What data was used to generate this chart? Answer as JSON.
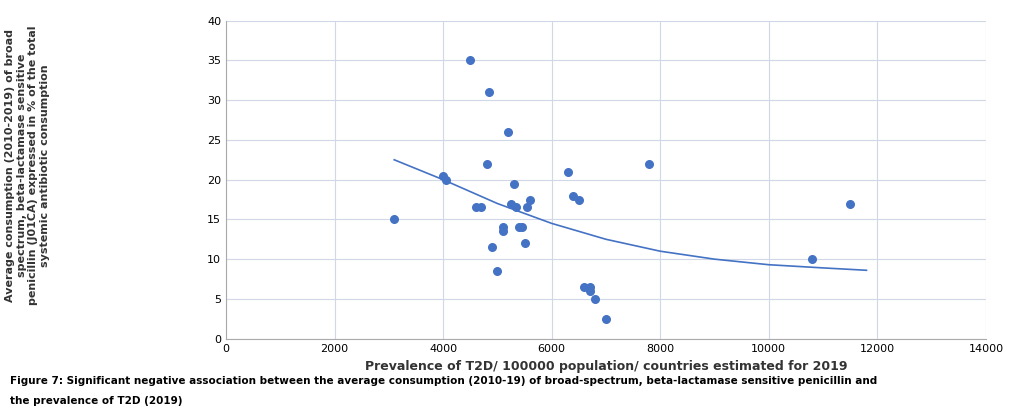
{
  "scatter_x": [
    3100,
    4000,
    4050,
    4500,
    4600,
    4700,
    4800,
    4850,
    4900,
    5000,
    5100,
    5100,
    5200,
    5250,
    5300,
    5350,
    5400,
    5450,
    5500,
    5550,
    5600,
    6300,
    6400,
    6500,
    6600,
    6700,
    6700,
    6800,
    7000,
    7800,
    10800,
    11500
  ],
  "scatter_y": [
    15,
    20.5,
    20,
    35,
    16.5,
    16.5,
    22,
    31,
    11.5,
    8.5,
    14,
    13.5,
    26,
    17,
    19.5,
    16.5,
    14,
    14,
    12,
    16.5,
    17.5,
    21,
    18,
    17.5,
    6.5,
    6.5,
    6,
    5,
    2.5,
    22,
    10,
    17
  ],
  "fit_x": [
    3100,
    4000,
    5000,
    6000,
    7000,
    8000,
    9000,
    10000,
    11000,
    11800
  ],
  "fit_y": [
    22.5,
    20.0,
    17.0,
    14.5,
    12.5,
    11.0,
    10.0,
    9.3,
    8.9,
    8.6
  ],
  "scatter_color": "#4472C4",
  "line_color": "#4472C4",
  "xlabel": "Prevalence of T2D/ 100000 population/ countries estimated for 2019",
  "ylabel_lines": [
    "Average consumption (2010-2019) of broad",
    "spectrum, beta-lactamase sensitive",
    "penicillin (J01CA) expressed in % of the total",
    "systemic antibiotic consumption"
  ],
  "xlim": [
    0,
    14000
  ],
  "ylim": [
    0,
    40
  ],
  "xticks": [
    0,
    2000,
    4000,
    6000,
    8000,
    10000,
    12000,
    14000
  ],
  "yticks": [
    0,
    5,
    10,
    15,
    20,
    25,
    30,
    35,
    40
  ],
  "caption_line1": "Figure 7: Significant negative association between the average consumption (2010-19) of broad-spectrum, beta-lactamase sensitive penicillin and",
  "caption_line2": "the prevalence of T2D (2019)",
  "grid_color": "#d0d8e8",
  "background_color": "#ffffff",
  "xlabel_fontsize": 9,
  "ylabel_fontsize": 8,
  "tick_fontsize": 8,
  "caption_fontsize": 7.5,
  "scatter_size": 30,
  "line_width": 1.2
}
